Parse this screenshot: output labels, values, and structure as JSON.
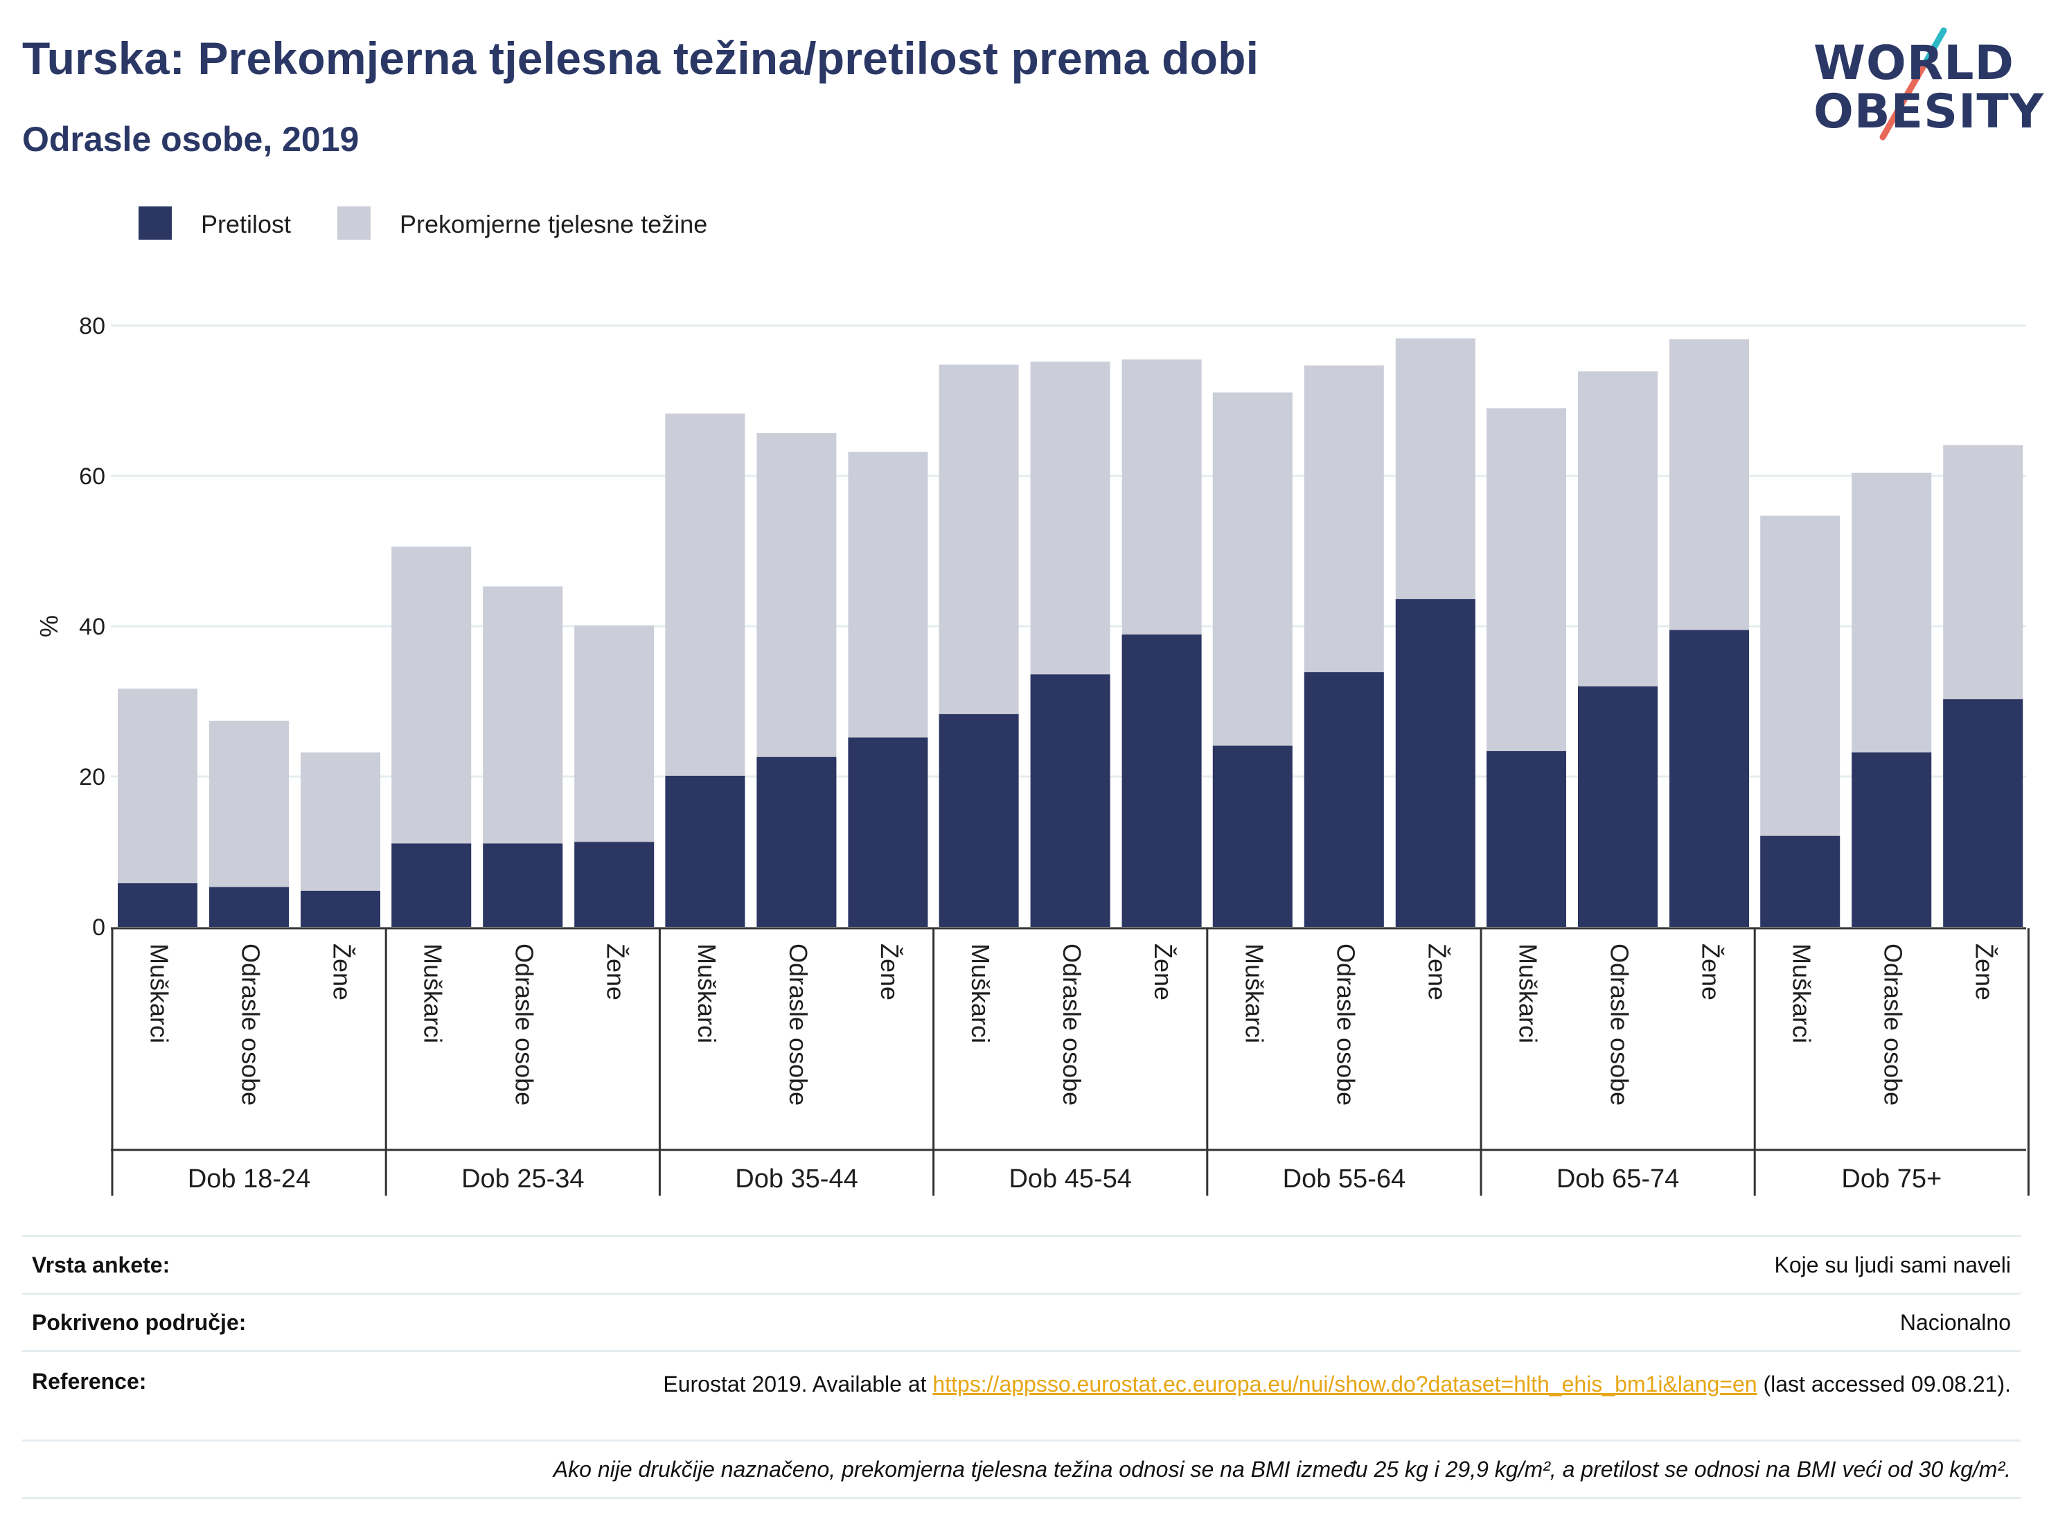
{
  "header": {
    "title": "Turska: Prekomjerna tjelesna težina/pretilost prema dobi",
    "subtitle": "Odrasle osobe, 2019"
  },
  "logo": {
    "line1": "WORLD",
    "line2": "OBESITY",
    "accent_teal": "#2cb9c5",
    "accent_coral": "#e8695a"
  },
  "colors": {
    "obesity": "#2b3663",
    "overweight": "#cbcdd8",
    "text": "#2b3866",
    "grid": "#e6ecef"
  },
  "chart_data": {
    "type": "bar",
    "stacked": true,
    "ylabel": "%",
    "ylim": [
      0,
      80
    ],
    "yticks": [
      0,
      20,
      40,
      60,
      80
    ],
    "legend": {
      "placement": "top-left",
      "items": [
        "Pretilost",
        "Prekomjerne tjelesne težine"
      ]
    },
    "groups": [
      {
        "label": "Dob 18-24",
        "bars": [
          {
            "label": "Muškarci",
            "obesity": 5.8,
            "total": 31.7
          },
          {
            "label": "Odrasle osobe",
            "obesity": 5.3,
            "total": 27.4
          },
          {
            "label": "Žene",
            "obesity": 4.8,
            "total": 23.2
          }
        ]
      },
      {
        "label": "Dob 25-34",
        "bars": [
          {
            "label": "Muškarci",
            "obesity": 11.1,
            "total": 50.6
          },
          {
            "label": "Odrasle osobe",
            "obesity": 11.1,
            "total": 45.3
          },
          {
            "label": "Žene",
            "obesity": 11.3,
            "total": 40.1
          }
        ]
      },
      {
        "label": "Dob 35-44",
        "bars": [
          {
            "label": "Muškarci",
            "obesity": 20.1,
            "total": 68.3
          },
          {
            "label": "Odrasle osobe",
            "obesity": 22.6,
            "total": 65.7
          },
          {
            "label": "Žene",
            "obesity": 25.2,
            "total": 63.2
          }
        ]
      },
      {
        "label": "Dob 45-54",
        "bars": [
          {
            "label": "Muškarci",
            "obesity": 28.3,
            "total": 74.8
          },
          {
            "label": "Odrasle osobe",
            "obesity": 33.6,
            "total": 75.2
          },
          {
            "label": "Žene",
            "obesity": 38.9,
            "total": 75.5
          }
        ]
      },
      {
        "label": "Dob 55-64",
        "bars": [
          {
            "label": "Muškarci",
            "obesity": 24.1,
            "total": 71.1
          },
          {
            "label": "Odrasle osobe",
            "obesity": 33.9,
            "total": 74.7
          },
          {
            "label": "Žene",
            "obesity": 43.6,
            "total": 78.3
          }
        ]
      },
      {
        "label": "Dob 65-74",
        "bars": [
          {
            "label": "Muškarci",
            "obesity": 23.4,
            "total": 69.0
          },
          {
            "label": "Odrasle osobe",
            "obesity": 32.0,
            "total": 73.9
          },
          {
            "label": "Žene",
            "obesity": 39.5,
            "total": 78.2
          }
        ]
      },
      {
        "label": "Dob 75+",
        "bars": [
          {
            "label": "Muškarci",
            "obesity": 12.1,
            "total": 54.7
          },
          {
            "label": "Odrasle osobe",
            "obesity": 23.2,
            "total": 60.4
          },
          {
            "label": "Žene",
            "obesity": 30.3,
            "total": 64.1
          }
        ]
      }
    ]
  },
  "info": {
    "survey_label": "Vrsta ankete:",
    "survey_value": "Koje su ljudi sami naveli",
    "coverage_label": "Pokriveno područje:",
    "coverage_value": "Nacionalno",
    "reference_label": "Reference:",
    "reference_prefix": "Eurostat 2019. Available at ",
    "reference_link": "https://appsso.eurostat.ec.europa.eu/nui/show.do?dataset=hlth_ehis_bm1i&lang=en",
    "reference_suffix": " (last accessed 09.08.21).",
    "footnote": "Ako nije drukčije naznačeno, prekomjerna tjelesna težina odnosi se na BMI između 25 kg i 29,9 kg/m², a pretilost se odnosi na BMI veći od 30 kg/m²."
  }
}
